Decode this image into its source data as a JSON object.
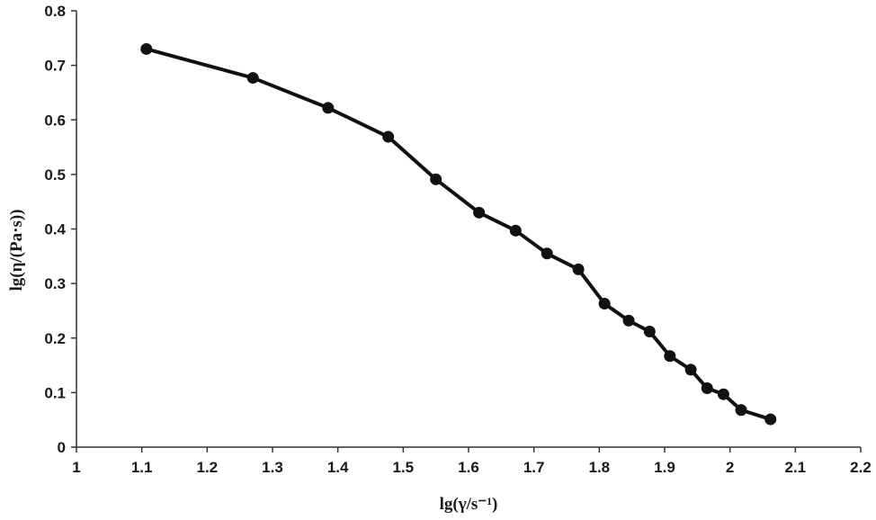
{
  "chart_data": {
    "type": "line",
    "title": "",
    "xlabel": "lg(γ/s⁻¹)",
    "ylabel": "lg(η/(Pa·s))",
    "xlim": [
      1,
      2.2
    ],
    "ylim": [
      0,
      0.8
    ],
    "x_ticks": [
      "1",
      "1.1",
      "1.2",
      "1.3",
      "1.4",
      "1.5",
      "1.6",
      "1.7",
      "1.8",
      "1.9",
      "2",
      "2.1",
      "2.2"
    ],
    "y_ticks": [
      "0",
      "0.1",
      "0.2",
      "0.3",
      "0.4",
      "0.5",
      "0.6",
      "0.7",
      "0.8"
    ],
    "grid": false,
    "series": [
      {
        "x": [
          1.107,
          1.27,
          1.385,
          1.477,
          1.55,
          1.616,
          1.672,
          1.72,
          1.768,
          1.808,
          1.845,
          1.877,
          1.908,
          1.94,
          1.965,
          1.99,
          2.017,
          2.062
        ],
        "y": [
          0.73,
          0.677,
          0.622,
          0.569,
          0.491,
          0.43,
          0.397,
          0.355,
          0.326,
          0.263,
          0.232,
          0.212,
          0.167,
          0.142,
          0.108,
          0.097,
          0.068,
          0.051
        ]
      }
    ],
    "colors": {
      "line": "#111111",
      "marker": "#111111",
      "axis": "#333333"
    }
  }
}
